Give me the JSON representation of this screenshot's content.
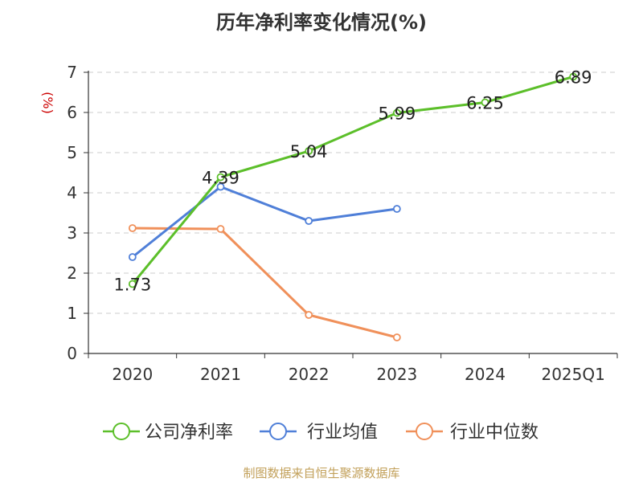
{
  "colors": {
    "net_margin": "#5cbf2a",
    "industry_avg": "#4f7fd8",
    "industry_median": "#f0905a",
    "axis": "#333333",
    "grid": "#cccccc",
    "ylabel": "#cc0000",
    "source": "#c2a05a"
  },
  "chart_data": {
    "type": "line",
    "title": "历年净利率变化情况(%)",
    "ylabel": "(%)",
    "xlabel": "",
    "categories": [
      "2020",
      "2021",
      "2022",
      "2023",
      "2024",
      "2025Q1"
    ],
    "ylim": [
      0,
      7
    ],
    "yticks": [
      0,
      1,
      2,
      3,
      4,
      5,
      6,
      7
    ],
    "grid": true,
    "legend_position": "bottom",
    "series": [
      {
        "name": "公司净利率",
        "color_key": "net_margin",
        "show_labels": true,
        "values": [
          1.73,
          4.39,
          5.04,
          5.99,
          6.25,
          6.89
        ]
      },
      {
        "name": "行业均值",
        "color_key": "industry_avg",
        "show_labels": false,
        "values": [
          2.4,
          4.15,
          3.3,
          3.6,
          null,
          null
        ]
      },
      {
        "name": "行业中位数",
        "color_key": "industry_median",
        "show_labels": false,
        "values": [
          3.12,
          3.1,
          0.96,
          0.4,
          null,
          null
        ]
      }
    ]
  },
  "footer": {
    "source": "制图数据来自恒生聚源数据库"
  }
}
